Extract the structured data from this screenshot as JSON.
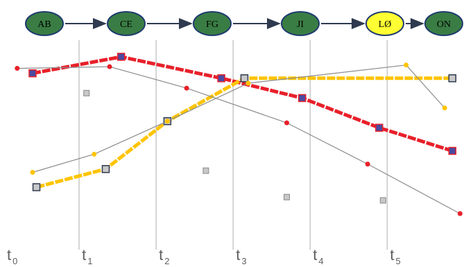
{
  "chart_data": {
    "type": "line",
    "sequence": {
      "nodes": [
        {
          "label": "AB",
          "color": "#3a7d44"
        },
        {
          "label": "CE",
          "color": "#3a7d44"
        },
        {
          "label": "FG",
          "color": "#3a7d44"
        },
        {
          "label": "JI",
          "color": "#3a7d44"
        },
        {
          "label": "LØ",
          "color": "#ffff33"
        },
        {
          "label": "ON",
          "color": "#3a7d44"
        }
      ],
      "node_border": "#1f3b6e",
      "arrow_color": "#2f3a4f"
    },
    "time_ticks": [
      {
        "main": "t",
        "sub": "0"
      },
      {
        "main": "t",
        "sub": "1"
      },
      {
        "main": "t",
        "sub": "2"
      },
      {
        "main": "t",
        "sub": "3"
      },
      {
        "main": "t",
        "sub": "4"
      },
      {
        "main": "t",
        "sub": "5"
      }
    ],
    "xlim": [
      0,
      5.4
    ],
    "ylim": [
      0,
      1
    ],
    "guide_lines_at": [
      1,
      2,
      3,
      4,
      5
    ],
    "series": [
      {
        "role": "red-thick",
        "color": "#e8202a",
        "marker": "square",
        "marker_fill": "#4a4aa0",
        "points": [
          [
            0.45,
            0.85
          ],
          [
            1.6,
            0.95
          ],
          [
            2.9,
            0.82
          ],
          [
            3.95,
            0.7
          ],
          [
            4.95,
            0.52
          ],
          [
            5.9,
            0.38
          ]
        ]
      },
      {
        "role": "yellow-thick",
        "color": "#ffc400",
        "marker": "square",
        "marker_fill": "#c8c8c8",
        "points": [
          [
            0.5,
            0.16
          ],
          [
            1.4,
            0.27
          ],
          [
            2.2,
            0.56
          ],
          [
            3.2,
            0.82
          ],
          [
            5.9,
            0.82
          ]
        ]
      },
      {
        "role": "red-thin",
        "color": "#8c8c8c",
        "dot_color": "#e8202a",
        "points": [
          [
            0.25,
            0.88
          ],
          [
            1.45,
            0.89
          ],
          [
            2.45,
            0.76
          ],
          [
            3.75,
            0.55
          ],
          [
            4.8,
            0.3
          ],
          [
            6.0,
            0.0
          ]
        ]
      },
      {
        "role": "yellow-thin",
        "color": "#8c8c8c",
        "dot_color": "#ffc400",
        "points": [
          [
            0.45,
            0.25
          ],
          [
            1.25,
            0.36
          ],
          [
            2.2,
            0.56
          ],
          [
            3.25,
            0.79
          ],
          [
            5.3,
            0.9
          ],
          [
            5.8,
            0.64
          ]
        ]
      },
      {
        "role": "gray-markers",
        "color": "#a0a0a0",
        "marker": "square",
        "points": [
          [
            1.15,
            0.73
          ],
          [
            2.7,
            0.26
          ],
          [
            3.75,
            0.1
          ],
          [
            5.0,
            0.08
          ]
        ]
      }
    ],
    "grid": false,
    "legend": "none"
  }
}
